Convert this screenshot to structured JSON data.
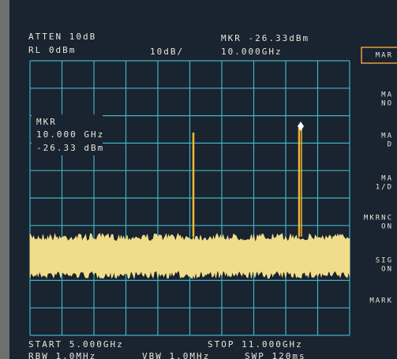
{
  "header": {
    "atten": "ATTEN 10dB",
    "ref_level": "RL 0dBm",
    "scale": "10dB/",
    "marker_level": "MKR -26.33dBm",
    "marker_freq": "10.000GHz"
  },
  "marker_box": {
    "label": "MKR",
    "freq": "10.000 GHz",
    "level": "-26.33 dBm"
  },
  "softkeys": [
    [
      "MAR"
    ],
    [
      "MA",
      "NO"
    ],
    [
      "MA",
      "D"
    ],
    [
      "MA",
      "1/D"
    ],
    [
      "MKRNC",
      "ON"
    ],
    [
      "SIG",
      "ON"
    ],
    [
      "MARK"
    ]
  ],
  "footer": {
    "start": "START 5.000GHz",
    "stop": "STOP 11.000GHz",
    "rbw": "RBW 1.0MHz",
    "vbw": "VBW 1.0MHz",
    "sweep": "SWP 120ms"
  }
}
